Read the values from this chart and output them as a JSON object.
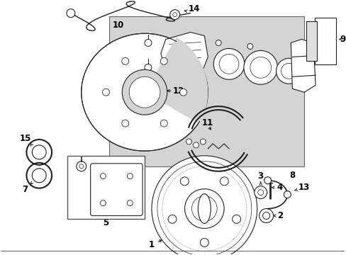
{
  "bg": "#ffffff",
  "lc": "#222222",
  "shade": "#d4d4d4",
  "shade2": "#c8c8c8",
  "fig_w": 4.89,
  "fig_h": 3.6,
  "dpi": 100,
  "lw": 0.8
}
